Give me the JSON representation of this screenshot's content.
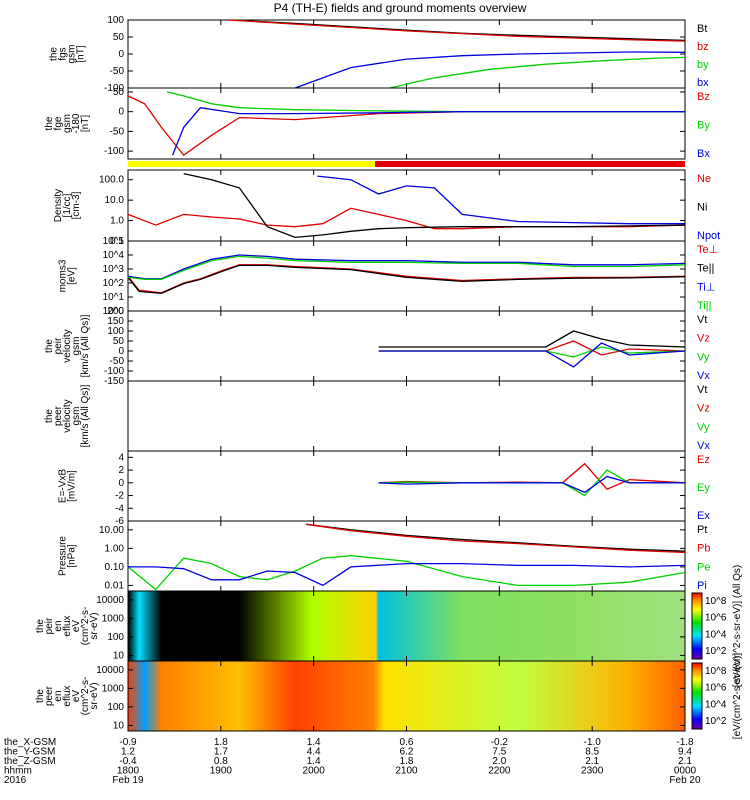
{
  "title": "P4 (TH-E) fields and ground moments overview",
  "colors": {
    "black": "#000000",
    "red": "#e00000",
    "green": "#00d000",
    "blue": "#0000e0",
    "yellow": "#ffff00"
  },
  "chart_data": [
    {
      "type": "line",
      "id": "fgs",
      "ylabel": [
        "the",
        "fgs",
        "gsm",
        "[nT]"
      ],
      "ylim": [
        -100,
        100
      ],
      "yticks": [
        "100",
        "50",
        "0",
        "-50",
        "-100"
      ],
      "series": [
        {
          "name": "Bt",
          "color": "black",
          "x": [
            0.18,
            0.3,
            0.4,
            0.5,
            0.6,
            0.7,
            0.8,
            0.9,
            1.0
          ],
          "y": [
            100,
            90,
            80,
            70,
            61,
            55,
            50,
            45,
            40
          ]
        },
        {
          "name": "bz",
          "color": "red",
          "x": [
            0.18,
            0.3,
            0.4,
            0.5,
            0.6,
            0.7,
            0.8,
            0.9,
            1.0
          ],
          "y": [
            100,
            88,
            78,
            68,
            60,
            52,
            47,
            42,
            38
          ]
        },
        {
          "name": "by",
          "color": "green",
          "x": [
            0.47,
            0.55,
            0.65,
            0.75,
            0.85,
            0.95,
            1.0
          ],
          "y": [
            -100,
            -70,
            -45,
            -30,
            -20,
            -12,
            -10
          ]
        },
        {
          "name": "bx",
          "color": "blue",
          "x": [
            0.3,
            0.4,
            0.5,
            0.6,
            0.7,
            0.8,
            0.9,
            1.0
          ],
          "y": [
            -100,
            -40,
            -15,
            -5,
            0,
            3,
            6,
            5
          ]
        }
      ]
    },
    {
      "type": "line",
      "id": "fge",
      "ylabel": [
        "the",
        "fge",
        "gsm",
        "-180",
        "[nT]"
      ],
      "ylim": [
        -120,
        60
      ],
      "yticks": [
        "50",
        "0",
        "-50",
        "-100"
      ],
      "series": [
        {
          "name": "Bz",
          "color": "red",
          "x": [
            0,
            0.03,
            0.06,
            0.1,
            0.15,
            0.2,
            0.3,
            0.45,
            0.6,
            0.8,
            1.0
          ],
          "y": [
            40,
            20,
            -40,
            -110,
            -60,
            -15,
            -20,
            -5,
            0,
            0,
            0
          ]
        },
        {
          "name": "By",
          "color": "green",
          "x": [
            0.07,
            0.1,
            0.15,
            0.2,
            0.3,
            0.45,
            0.6,
            0.8,
            1.0
          ],
          "y": [
            50,
            40,
            20,
            10,
            5,
            2,
            0,
            0,
            0
          ]
        },
        {
          "name": "Bx",
          "color": "blue",
          "x": [
            0.08,
            0.1,
            0.13,
            0.2,
            0.3,
            0.45,
            0.6,
            0.8,
            1.0
          ],
          "y": [
            -110,
            -40,
            10,
            -5,
            -5,
            -3,
            0,
            0,
            0
          ]
        }
      ]
    },
    {
      "type": "line",
      "id": "density",
      "ylabel": [
        "Density",
        "[1/cc]",
        "[cm-3]"
      ],
      "yscale": "log",
      "ylim": [
        0.1,
        300
      ],
      "yticks": [
        "100.0",
        "10.0",
        "1.0",
        "0.1"
      ],
      "series": [
        {
          "name": "Ne",
          "color": "red",
          "x": [
            0,
            0.05,
            0.1,
            0.15,
            0.2,
            0.25,
            0.3,
            0.35,
            0.4,
            0.45,
            0.5,
            0.55,
            0.6,
            0.7,
            0.8,
            0.9,
            1.0
          ],
          "y": [
            2,
            0.6,
            2,
            1.5,
            1.2,
            0.6,
            0.5,
            0.7,
            4,
            2,
            1,
            0.4,
            0.4,
            0.5,
            0.5,
            0.5,
            0.6
          ]
        },
        {
          "name": "Ni",
          "color": "black",
          "x": [
            0.1,
            0.15,
            0.2,
            0.25,
            0.3,
            0.35,
            0.4,
            0.45,
            0.5,
            0.6,
            0.7,
            0.8,
            0.9,
            1.0
          ],
          "y": [
            200,
            100,
            40,
            0.5,
            0.15,
            0.2,
            0.3,
            0.4,
            0.45,
            0.5,
            0.5,
            0.5,
            0.55,
            0.6
          ]
        },
        {
          "name": "Npot",
          "color": "blue",
          "x": [
            0.34,
            0.4,
            0.45,
            0.5,
            0.55,
            0.6,
            0.7,
            0.8,
            0.9,
            1.0
          ],
          "y": [
            150,
            100,
            20,
            50,
            40,
            2,
            0.9,
            0.8,
            0.7,
            0.7
          ]
        }
      ]
    },
    {
      "type": "line",
      "id": "moms",
      "ylabel": [
        "moms3",
        "[eV]"
      ],
      "yscale": "log",
      "ylim": [
        1,
        100000
      ],
      "yticks": [
        "10^5",
        "10^4",
        "10^3",
        "10^2",
        "10^1",
        "10^0"
      ],
      "series": [
        {
          "name": "Te⊥",
          "color": "red",
          "x": [
            0,
            0.02,
            0.06,
            0.1,
            0.13,
            0.17,
            0.2,
            0.25,
            0.3,
            0.4,
            0.5,
            0.6,
            0.7,
            0.8,
            0.9,
            1.0
          ],
          "y": [
            300,
            30,
            20,
            100,
            200,
            800,
            2000,
            2000,
            1500,
            1000,
            300,
            150,
            200,
            250,
            250,
            300
          ]
        },
        {
          "name": "Te||",
          "color": "black",
          "x": [
            0,
            0.02,
            0.06,
            0.1,
            0.13,
            0.17,
            0.2,
            0.25,
            0.3,
            0.4,
            0.5,
            0.6,
            0.7,
            0.8,
            0.9,
            1.0
          ],
          "y": [
            250,
            25,
            18,
            90,
            180,
            700,
            1800,
            1800,
            1300,
            900,
            250,
            130,
            180,
            220,
            230,
            280
          ]
        },
        {
          "name": "Ti⊥",
          "color": "blue",
          "x": [
            0,
            0.03,
            0.06,
            0.1,
            0.15,
            0.2,
            0.25,
            0.3,
            0.4,
            0.5,
            0.6,
            0.7,
            0.8,
            0.9,
            1.0
          ],
          "y": [
            300,
            200,
            200,
            1000,
            5000,
            10000,
            8000,
            5000,
            4000,
            4000,
            3000,
            3000,
            2000,
            2000,
            2500
          ]
        },
        {
          "name": "Ti||",
          "color": "green",
          "x": [
            0,
            0.03,
            0.06,
            0.1,
            0.15,
            0.2,
            0.25,
            0.3,
            0.4,
            0.5,
            0.6,
            0.7,
            0.8,
            0.9,
            1.0
          ],
          "y": [
            250,
            180,
            180,
            800,
            4000,
            8000,
            6000,
            4000,
            3000,
            3000,
            2500,
            2500,
            1500,
            1500,
            2000
          ]
        }
      ]
    },
    {
      "type": "line",
      "id": "peir_vel",
      "ylabel": [
        "the",
        "peir",
        "velocity",
        "gsm",
        "[km/s (All Qs)]"
      ],
      "ylim": [
        -150,
        200
      ],
      "yticks": [
        "200",
        "150",
        "100",
        "50",
        "0",
        "-50",
        "-100",
        "-150"
      ],
      "series": [
        {
          "name": "Vt",
          "color": "black",
          "x": [
            0.45,
            0.5,
            0.6,
            0.7,
            0.75,
            0.8,
            0.85,
            0.9,
            1.0
          ],
          "y": [
            20,
            20,
            20,
            20,
            20,
            100,
            60,
            30,
            20
          ]
        },
        {
          "name": "Vz",
          "color": "red",
          "x": [
            0.45,
            0.5,
            0.6,
            0.7,
            0.75,
            0.8,
            0.85,
            0.9,
            1.0
          ],
          "y": [
            0,
            0,
            0,
            0,
            0,
            50,
            -20,
            10,
            0
          ]
        },
        {
          "name": "Vy",
          "color": "green",
          "x": [
            0.45,
            0.5,
            0.6,
            0.7,
            0.75,
            0.8,
            0.85,
            0.9,
            1.0
          ],
          "y": [
            0,
            0,
            0,
            0,
            0,
            -30,
            20,
            -10,
            0
          ]
        },
        {
          "name": "Vx",
          "color": "blue",
          "x": [
            0.45,
            0.5,
            0.6,
            0.7,
            0.75,
            0.8,
            0.85,
            0.9,
            1.0
          ],
          "y": [
            0,
            0,
            0,
            0,
            0,
            -80,
            40,
            -20,
            0
          ]
        }
      ]
    },
    {
      "type": "line",
      "id": "peer_vel",
      "ylabel": [
        "the",
        "peer",
        "velocity",
        "gsm",
        "[km/s (All Qs)]"
      ],
      "ylim": [
        0,
        1
      ],
      "yticks": [],
      "series": [
        {
          "name": "Vt",
          "color": "black",
          "x": [],
          "y": []
        },
        {
          "name": "Vz",
          "color": "red",
          "x": [],
          "y": []
        },
        {
          "name": "Vy",
          "color": "green",
          "x": [],
          "y": []
        },
        {
          "name": "Vx",
          "color": "blue",
          "x": [],
          "y": []
        }
      ]
    },
    {
      "type": "line",
      "id": "efield",
      "ylabel": [
        "E=-VxB",
        "[mV/m]"
      ],
      "ylim": [
        -6,
        5
      ],
      "yticks": [
        "4",
        "2",
        "0",
        "-2",
        "-4",
        "-6"
      ],
      "series": [
        {
          "name": "Ez",
          "color": "red",
          "x": [
            0.45,
            0.5,
            0.6,
            0.7,
            0.78,
            0.82,
            0.86,
            0.9,
            1.0
          ],
          "y": [
            0,
            0.2,
            0,
            0.1,
            0,
            3,
            -1,
            0.5,
            0
          ]
        },
        {
          "name": "Ey",
          "color": "green",
          "x": [
            0.45,
            0.5,
            0.6,
            0.7,
            0.78,
            0.82,
            0.86,
            0.9,
            1.0
          ],
          "y": [
            0,
            0.1,
            0,
            0,
            0,
            -2,
            2,
            0,
            0
          ]
        },
        {
          "name": "Ex",
          "color": "blue",
          "x": [
            0.45,
            0.5,
            0.6,
            0.7,
            0.78,
            0.82,
            0.86,
            0.9,
            1.0
          ],
          "y": [
            0,
            -0.2,
            0,
            0,
            0,
            -1.5,
            1,
            0,
            0
          ]
        }
      ]
    },
    {
      "type": "line",
      "id": "pressure",
      "ylabel": [
        "Pressure",
        "[nPa]"
      ],
      "yscale": "log",
      "ylim": [
        0.005,
        30
      ],
      "yticks": [
        "10.00",
        "1.00",
        "0.10",
        "0.01"
      ],
      "series": [
        {
          "name": "Pt",
          "color": "black",
          "x": [
            0.32,
            0.4,
            0.5,
            0.6,
            0.7,
            0.8,
            0.9,
            1.0
          ],
          "y": [
            20,
            10,
            5,
            3,
            2,
            1.3,
            0.9,
            0.7
          ]
        },
        {
          "name": "Pb",
          "color": "red",
          "x": [
            0.32,
            0.4,
            0.5,
            0.6,
            0.7,
            0.8,
            0.9,
            1.0
          ],
          "y": [
            20,
            9,
            4.5,
            2.5,
            1.8,
            1.2,
            0.8,
            0.6
          ]
        },
        {
          "name": "Pe",
          "color": "green",
          "x": [
            0,
            0.05,
            0.1,
            0.15,
            0.2,
            0.25,
            0.3,
            0.35,
            0.4,
            0.5,
            0.6,
            0.7,
            0.8,
            0.9,
            1.0
          ],
          "y": [
            0.1,
            0.006,
            0.3,
            0.15,
            0.03,
            0.02,
            0.06,
            0.3,
            0.4,
            0.2,
            0.03,
            0.01,
            0.01,
            0.015,
            0.05
          ]
        },
        {
          "name": "Pi",
          "color": "blue",
          "x": [
            0,
            0.05,
            0.1,
            0.15,
            0.2,
            0.25,
            0.3,
            0.35,
            0.4,
            0.5,
            0.6,
            0.7,
            0.8,
            0.9,
            1.0
          ],
          "y": [
            0.1,
            0.1,
            0.08,
            0.02,
            0.02,
            0.06,
            0.05,
            0.01,
            0.1,
            0.15,
            0.15,
            0.12,
            0.12,
            0.1,
            0.12
          ]
        }
      ]
    },
    {
      "type": "heatmap",
      "id": "peir_en",
      "ylabel": [
        "the",
        "peir",
        "en",
        "eflux",
        "eV",
        "(cm^2-s-",
        "sr-eV)"
      ],
      "yscale": "log",
      "ylim": [
        5,
        30000
      ],
      "yticks": [
        "10000",
        "1000",
        "100",
        "10"
      ],
      "colorbar_ticks": [
        "10^8",
        "10^6",
        "10^4",
        "10^2"
      ],
      "colorbar_label": "[eV/(cm^2-s-sr-eV)] (All Qs)"
    },
    {
      "type": "heatmap",
      "id": "peer_en",
      "ylabel": [
        "the",
        "peer",
        "en",
        "eflux",
        "eV",
        "(cm^2-s-",
        "sr-eV)"
      ],
      "yscale": "log",
      "ylim": [
        5,
        30000
      ],
      "yticks": [
        "10000",
        "1000",
        "100",
        "10"
      ],
      "colorbar_ticks": [
        "10^8",
        "10^6",
        "10^4",
        "10^2"
      ],
      "colorbar_label": "[eV/(cm^2-s-sr-eV)]"
    }
  ],
  "xaxis": {
    "rows": [
      {
        "label": "the_X-GSM",
        "values": [
          "-0.9",
          "1.8",
          "1.4",
          "0.6",
          "-0.2",
          "-1.0",
          "-1.8"
        ]
      },
      {
        "label": "the_Y-GSM",
        "values": [
          "1.2",
          "1.7",
          "4.4",
          "6.2",
          "7.5",
          "8.5",
          "9.4"
        ]
      },
      {
        "label": "the_Z-GSM",
        "values": [
          "-0.4",
          "0.8",
          "1.4",
          "1.8",
          "2.0",
          "2.1",
          "2.1"
        ]
      },
      {
        "label": "hhmm",
        "values": [
          "1800",
          "1900",
          "2000",
          "2100",
          "2200",
          "2300",
          "0000"
        ]
      },
      {
        "label": "2016",
        "values": [
          "Feb 19",
          "",
          "",
          "",
          "",
          "",
          "Feb 20"
        ]
      }
    ]
  }
}
